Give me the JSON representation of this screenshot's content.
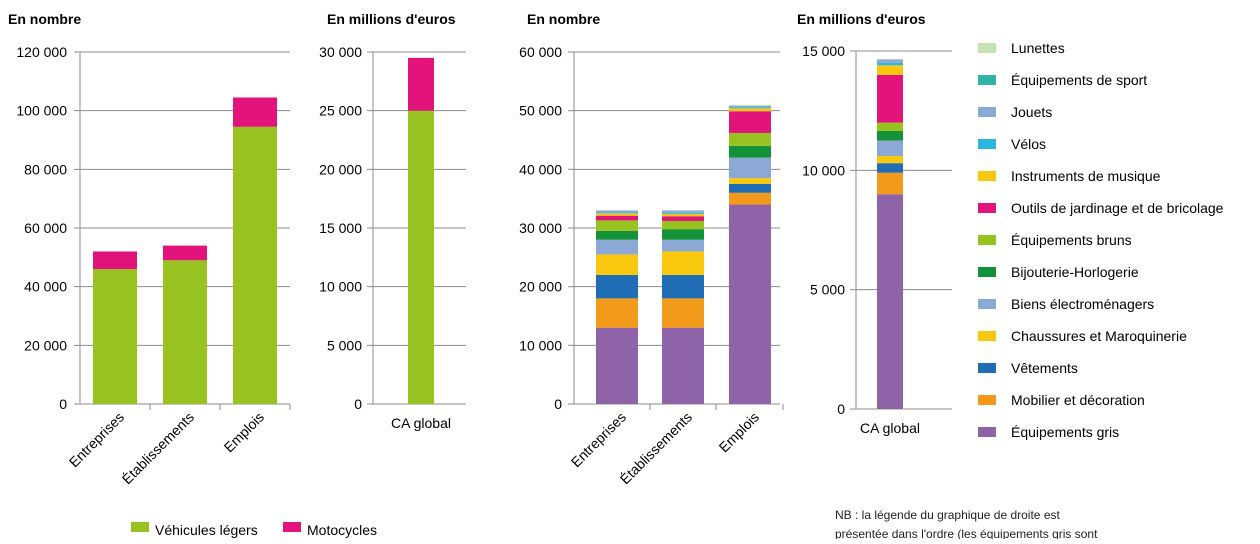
{
  "chart_data": [
    {
      "type": "bar",
      "stacked": true,
      "ylabel": "En nombre",
      "categories": [
        "Entreprises",
        "Établissements",
        "Emplois"
      ],
      "ylim": [
        0,
        120000
      ],
      "yticks": [
        0,
        20000,
        40000,
        60000,
        80000,
        100000,
        120000
      ],
      "tick_labels": [
        "0",
        "20 000",
        "40 000",
        "60 000",
        "80 000",
        "100 000",
        "120 000"
      ],
      "series": [
        {
          "name": "Véhicules légers",
          "color": "#98c21f",
          "values": [
            46000,
            49000,
            94500
          ]
        },
        {
          "name": "Motocycles",
          "color": "#e2137a",
          "values": [
            6000,
            5000,
            10000
          ]
        }
      ]
    },
    {
      "type": "bar",
      "stacked": true,
      "ylabel": "En millions d'euros",
      "categories": [
        "CA global"
      ],
      "ylim": [
        0,
        30000
      ],
      "yticks": [
        0,
        5000,
        10000,
        15000,
        20000,
        25000,
        30000
      ],
      "tick_labels": [
        "0",
        "5 000",
        "10 000",
        "15 000",
        "20 000",
        "25 000",
        "30 000"
      ],
      "series": [
        {
          "name": "Véhicules légers",
          "color": "#98c21f",
          "values": [
            25000
          ]
        },
        {
          "name": "Motocycles",
          "color": "#e2137a",
          "values": [
            4500
          ]
        }
      ]
    },
    {
      "type": "bar",
      "stacked": true,
      "ylabel": "En nombre",
      "categories": [
        "Entreprises",
        "Établissements",
        "Emplois"
      ],
      "ylim": [
        0,
        60000
      ],
      "yticks": [
        0,
        10000,
        20000,
        30000,
        40000,
        50000,
        60000
      ],
      "tick_labels": [
        "0",
        "10 000",
        "20 000",
        "30 000",
        "40 000",
        "50 000",
        "60 000"
      ],
      "series": [
        {
          "name": "Équipements gris",
          "color": "#8f63a8",
          "values": [
            13000,
            13000,
            34000
          ]
        },
        {
          "name": "Mobilier et décoration",
          "color": "#f39a1a",
          "values": [
            5000,
            5000,
            2000
          ]
        },
        {
          "name": "Vêtements",
          "color": "#1f6db4",
          "values": [
            4000,
            4000,
            1500
          ]
        },
        {
          "name": "Chaussures et Maroquinerie",
          "color": "#f9c80e",
          "values": [
            3500,
            4000,
            1000
          ]
        },
        {
          "name": "Biens électroménagers",
          "color": "#8ca9d6",
          "values": [
            2500,
            2000,
            3500
          ]
        },
        {
          "name": "Bijouterie-Horlogerie",
          "color": "#13923a",
          "values": [
            1500,
            1800,
            2000
          ]
        },
        {
          "name": "Équipements bruns",
          "color": "#98c21f",
          "values": [
            1800,
            1400,
            2200
          ]
        },
        {
          "name": "Outils de jardinage et de bricolage",
          "color": "#e2137a",
          "values": [
            800,
            800,
            3700
          ]
        },
        {
          "name": "Instruments de musique",
          "color": "#f9c80e",
          "values": [
            400,
            400,
            500
          ]
        },
        {
          "name": "Vélos",
          "color": "#29b6e0",
          "values": [
            200,
            200,
            200
          ]
        },
        {
          "name": "Jouets",
          "color": "#8ca9d6",
          "values": [
            300,
            400,
            200
          ]
        },
        {
          "name": "Équipements de sport",
          "color": "#33b3a6",
          "values": [
            0,
            0,
            0
          ]
        },
        {
          "name": "Lunettes",
          "color": "#c5e3b5",
          "values": [
            0,
            0,
            200
          ]
        }
      ]
    },
    {
      "type": "bar",
      "stacked": true,
      "ylabel": "En millions d'euros",
      "categories": [
        "CA global"
      ],
      "ylim": [
        0,
        15000
      ],
      "yticks": [
        0,
        5000,
        10000,
        15000
      ],
      "tick_labels": [
        "0",
        "5 000",
        "10 000",
        "15 000"
      ],
      "series": [
        {
          "name": "Équipements gris",
          "color": "#8f63a8",
          "values": [
            9000
          ]
        },
        {
          "name": "Mobilier et décoration",
          "color": "#f39a1a",
          "values": [
            900
          ]
        },
        {
          "name": "Vêtements",
          "color": "#1f6db4",
          "values": [
            400
          ]
        },
        {
          "name": "Chaussures et Maroquinerie",
          "color": "#f9c80e",
          "values": [
            300
          ]
        },
        {
          "name": "Biens électroménagers",
          "color": "#8ca9d6",
          "values": [
            650
          ]
        },
        {
          "name": "Bijouterie-Horlogerie",
          "color": "#13923a",
          "values": [
            400
          ]
        },
        {
          "name": "Équipements bruns",
          "color": "#98c21f",
          "values": [
            350
          ]
        },
        {
          "name": "Outils de jardinage et de bricolage",
          "color": "#e2137a",
          "values": [
            2000
          ]
        },
        {
          "name": "Instruments de musique",
          "color": "#f9c80e",
          "values": [
            400
          ]
        },
        {
          "name": "Vélos",
          "color": "#29b6e0",
          "values": [
            100
          ]
        },
        {
          "name": "Jouets",
          "color": "#8ca9d6",
          "values": [
            150
          ]
        },
        {
          "name": "Équipements de sport",
          "color": "#33b3a6",
          "values": [
            0
          ]
        },
        {
          "name": "Lunettes",
          "color": "#c5e3b5",
          "values": [
            0
          ]
        }
      ]
    }
  ],
  "legend_left": [
    {
      "label": "Véhicules légers",
      "color": "#98c21f"
    },
    {
      "label": "Motocycles",
      "color": "#e2137a"
    }
  ],
  "legend_right": [
    {
      "label": "Lunettes",
      "color": "#c5e3b5"
    },
    {
      "label": "Équipements de sport",
      "color": "#33b3a6"
    },
    {
      "label": "Jouets",
      "color": "#8ca9d6"
    },
    {
      "label": "Vélos",
      "color": "#29b6e0"
    },
    {
      "label": "Instruments de musique",
      "color": "#f9c80e"
    },
    {
      "label": "Outils de jardinage et de bricolage",
      "color": "#e2137a"
    },
    {
      "label": "Équipements bruns",
      "color": "#98c21f"
    },
    {
      "label": "Bijouterie-Horlogerie",
      "color": "#13923a"
    },
    {
      "label": "Biens électroménagers",
      "color": "#8ca9d6"
    },
    {
      "label": "Chaussures et Maroquinerie",
      "color": "#f9c80e"
    },
    {
      "label": "Vêtements",
      "color": "#1f6db4"
    },
    {
      "label": "Mobilier et décoration",
      "color": "#f39a1a"
    },
    {
      "label": "Équipements gris",
      "color": "#8f63a8"
    }
  ],
  "note": {
    "line1": "NB : la légende du graphique de droite est",
    "line2": "présentée dans l'ordre (les équipements gris sont"
  }
}
